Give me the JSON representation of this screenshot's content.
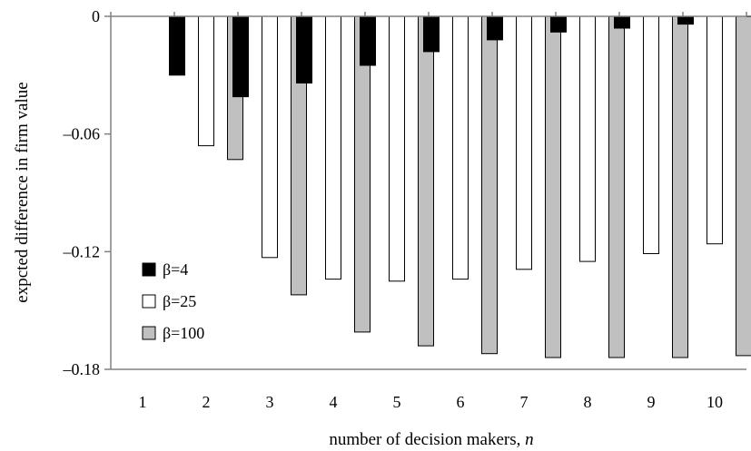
{
  "chart_data": {
    "type": "bar",
    "title": "",
    "xlabel": "number of decision makers, ",
    "xlabel_var": "n",
    "ylabel": "expcted difference in firm value",
    "categories": [
      "1",
      "2",
      "3",
      "4",
      "5",
      "6",
      "7",
      "8",
      "9",
      "10"
    ],
    "y_ticks": [
      0,
      -0.06,
      -0.12,
      -0.18
    ],
    "y_tick_labels": [
      "0",
      "–0.06",
      "–0.12",
      "–0.18"
    ],
    "ylim": [
      -0.18,
      0
    ],
    "grid": false,
    "legend_position": "bottom-left",
    "series": [
      {
        "name": "β=4",
        "color": "#000000",
        "values": [
          0,
          -0.03,
          -0.041,
          -0.034,
          -0.025,
          -0.018,
          -0.012,
          -0.008,
          -0.006,
          -0.004
        ]
      },
      {
        "name": "β=25",
        "color": "#ffffff",
        "values": [
          0,
          -0.066,
          -0.123,
          -0.134,
          -0.135,
          -0.134,
          -0.129,
          -0.125,
          -0.121,
          -0.116
        ]
      },
      {
        "name": "β=100",
        "color": "#c0c0c0",
        "values": [
          0,
          -0.073,
          -0.142,
          -0.161,
          -0.168,
          -0.172,
          -0.174,
          -0.174,
          -0.174,
          -0.173
        ]
      }
    ]
  }
}
